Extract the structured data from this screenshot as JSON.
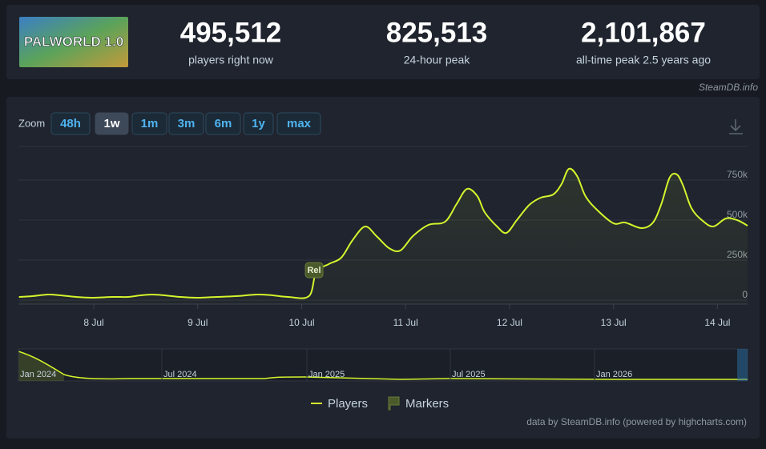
{
  "header": {
    "game_logo": "PALWORLD 1.0",
    "stats": [
      {
        "value": "495,512",
        "label": "players right now"
      },
      {
        "value": "825,513",
        "label": "24-hour peak"
      },
      {
        "value": "2,101,867",
        "label": "all-time peak 2.5 years ago"
      }
    ]
  },
  "attribution": "SteamDB.info",
  "zoom": {
    "label": "Zoom",
    "options": [
      "48h",
      "1w",
      "1m",
      "3m",
      "6m",
      "1y",
      "max"
    ],
    "active": "1w"
  },
  "chart_data": {
    "type": "line",
    "series": [
      {
        "name": "Players",
        "color": "#d4f52c",
        "x": [
          7.28,
          7.41,
          7.56,
          7.68,
          7.83,
          7.98,
          8.18,
          8.33,
          8.45,
          8.56,
          8.68,
          8.83,
          8.99,
          9.18,
          9.37,
          9.57,
          9.72,
          9.87,
          10.07,
          10.14,
          10.26,
          10.38,
          10.49,
          10.61,
          10.72,
          10.84,
          10.95,
          11.07,
          11.22,
          11.38,
          11.49,
          11.59,
          11.69,
          11.76,
          11.88,
          11.97,
          12.07,
          12.19,
          12.3,
          12.42,
          12.5,
          12.57,
          12.65,
          12.73,
          12.84,
          13.0,
          13.11,
          13.27,
          13.38,
          13.46,
          13.54,
          13.61,
          13.67,
          13.75,
          13.85,
          13.96,
          14.08,
          14.19,
          14.29
        ],
        "values": [
          20000,
          25000,
          35000,
          30000,
          20000,
          15000,
          20000,
          20000,
          30000,
          35000,
          30000,
          20000,
          15000,
          20000,
          25000,
          35000,
          30000,
          20000,
          25000,
          175000,
          225000,
          265000,
          375000,
          460000,
          400000,
          325000,
          310000,
          400000,
          470000,
          490000,
          600000,
          695000,
          650000,
          550000,
          460000,
          420000,
          500000,
          595000,
          640000,
          660000,
          725000,
          820000,
          775000,
          650000,
          565000,
          480000,
          485000,
          450000,
          485000,
          600000,
          765000,
          785000,
          715000,
          575000,
          500000,
          460000,
          510000,
          500000,
          465000
        ]
      }
    ],
    "xlim": [
      7.275,
      14.29
    ],
    "ylim": [
      -25000,
      960000
    ],
    "xticks": [
      {
        "value": 8,
        "label": "8 Jul"
      },
      {
        "value": 9,
        "label": "9 Jul"
      },
      {
        "value": 10,
        "label": "10 Jul"
      },
      {
        "value": 11,
        "label": "11 Jul"
      },
      {
        "value": 12,
        "label": "12 Jul"
      },
      {
        "value": 13,
        "label": "13 Jul"
      },
      {
        "value": 14,
        "label": "14 Jul"
      }
    ],
    "yticks": [
      0,
      {
        "value": 250000,
        "label": "250k"
      },
      {
        "value": 500000,
        "label": "500k"
      },
      {
        "value": 750000,
        "label": "750k"
      }
    ],
    "grid": true,
    "markers_name": "Markers",
    "markers": [
      {
        "label": "Rel",
        "x": 10.12
      }
    ]
  },
  "navigator": {
    "labels": [
      "Jan 2024",
      "Jul 2024",
      "Jan 2025",
      "Jul 2025",
      "Jan 2026"
    ]
  },
  "credits": "data by SteamDB.info (powered by highcharts.com)"
}
